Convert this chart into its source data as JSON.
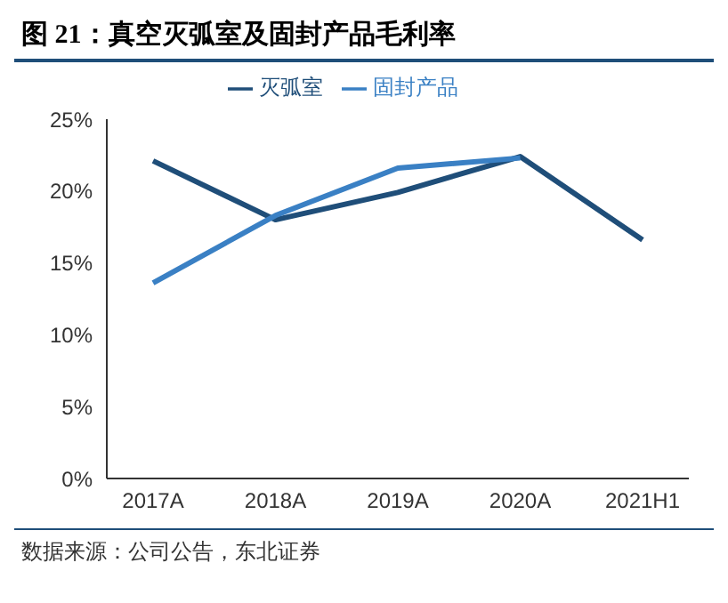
{
  "chart_data": {
    "type": "line",
    "title": "图 21：真空灭弧室及固封产品毛利率",
    "categories": [
      "2017A",
      "2018A",
      "2019A",
      "2020A",
      "2021H1"
    ],
    "series": [
      {
        "name": "灭弧室",
        "color": "#1f4e79",
        "values": [
          22.1,
          18.0,
          19.9,
          22.4,
          16.6
        ]
      },
      {
        "name": "固封产品",
        "color": "#3a80c4",
        "values": [
          13.6,
          18.3,
          21.6,
          22.3,
          null
        ]
      }
    ],
    "ylim": [
      0,
      25
    ],
    "yticks": [
      {
        "value": 0,
        "label": "0%"
      },
      {
        "value": 5,
        "label": "5%"
      },
      {
        "value": 10,
        "label": "10%"
      },
      {
        "value": 15,
        "label": "15%"
      },
      {
        "value": 20,
        "label": "20%"
      },
      {
        "value": 25,
        "label": "25%"
      }
    ],
    "grid": false,
    "legend": "top",
    "marker": "none",
    "line_style": "solid",
    "annotations": [
      "数据来源：公司公告，东北证券"
    ]
  }
}
